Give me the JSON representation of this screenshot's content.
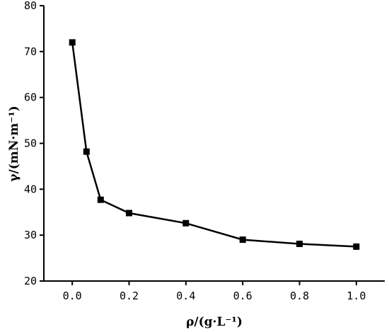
{
  "chart_data": {
    "type": "line",
    "xlabel": "ρ/(g·L⁻¹)",
    "ylabel": "γ/(mN·m⁻¹)",
    "xlim": [
      -0.1,
      1.1
    ],
    "ylim": [
      20,
      80
    ],
    "x_ticks": [
      0.0,
      0.2,
      0.4,
      0.6,
      0.8,
      1.0
    ],
    "x_tick_labels": [
      "0.0",
      "0.2",
      "0.4",
      "0.6",
      "0.8",
      "1.0"
    ],
    "y_ticks": [
      20,
      30,
      40,
      50,
      60,
      70,
      80
    ],
    "y_tick_labels": [
      "20",
      "30",
      "40",
      "50",
      "60",
      "70",
      "80"
    ],
    "grid": false,
    "marker": "square",
    "series": [
      {
        "x": [
          0.0,
          0.05,
          0.1,
          0.2,
          0.4,
          0.6,
          0.8,
          1.0
        ],
        "y": [
          72.0,
          48.2,
          37.7,
          34.8,
          32.6,
          29.0,
          28.1,
          27.5
        ]
      }
    ]
  }
}
